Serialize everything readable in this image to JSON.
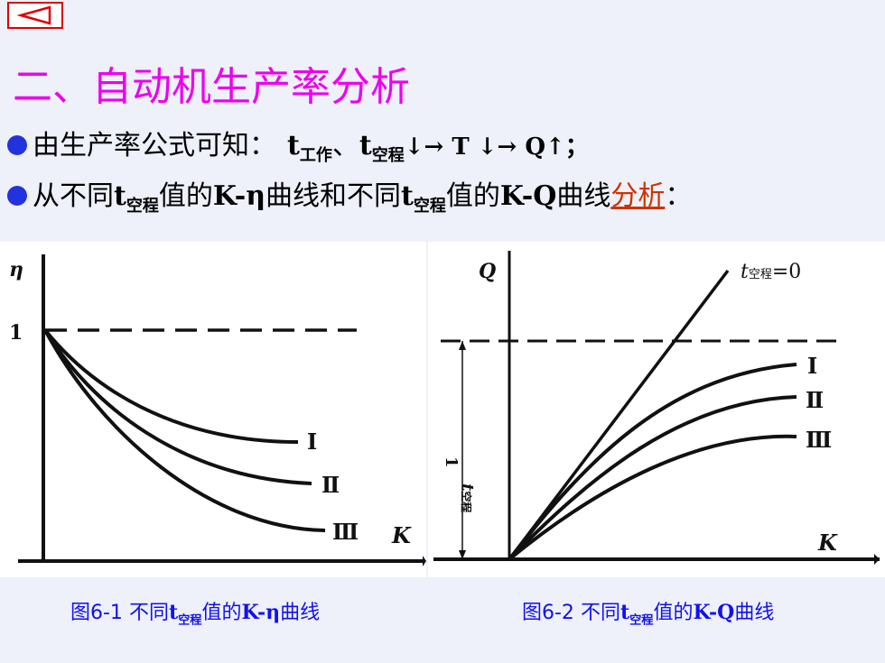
{
  "nav": {
    "back_icon": "triangle-left-icon",
    "accent": "#dd0000"
  },
  "title": "二、自动机生产率分析",
  "bullet1": {
    "lead": "由生产率公式可知：",
    "t1": "t",
    "t1_sub": "工作",
    "sep": "、",
    "t2": "t",
    "t2_sub": "空程",
    "rest": "↓→ T ↓→ Q↑；"
  },
  "bullet2": {
    "p1": "从不同",
    "t": "t",
    "t_sub": "空程",
    "p2": "值的",
    "k1": "K-η",
    "p3": "曲线和不同",
    "p4": "值的",
    "k2": "K-Q",
    "p5": "曲线",
    "link": "分析",
    "end": "："
  },
  "fig1": {
    "y_label": "η",
    "y_tick": "1",
    "x_label": "K",
    "curve_labels": [
      "Ⅰ",
      "Ⅱ",
      "Ⅲ"
    ]
  },
  "fig2": {
    "y_label": "Q",
    "x_label": "K",
    "line_label_t": "t",
    "line_label_sub": "空程",
    "line_label_eq": "=0",
    "asym_label_num": "1",
    "asym_label_t": "t",
    "asym_label_sub": "空程",
    "curve_labels": [
      "Ⅰ",
      "Ⅱ",
      "Ⅲ"
    ]
  },
  "caption1": {
    "fig": "图6-1",
    "p1": "不同",
    "t": "t",
    "t_sub": "空程",
    "p2": "值的",
    "k": "K-η",
    "p3": "曲线"
  },
  "caption2": {
    "fig": "图6-2",
    "p1": "不同",
    "t": "t",
    "t_sub": "空程",
    "p2": "值的",
    "k": "K-Q",
    "p3": "曲线"
  },
  "colors": {
    "title": "#ee00ee",
    "bullet_dot": "#2233dd",
    "caption": "#1111ee",
    "link": "#cc3300"
  }
}
